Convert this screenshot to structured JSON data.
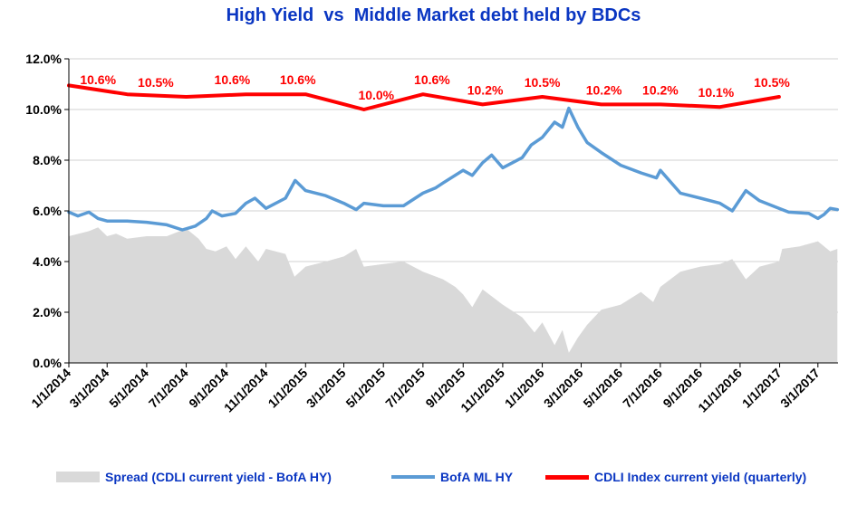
{
  "chart_data": {
    "type": "line",
    "title": "High Yield  vs  Middle Market debt held by BDCs",
    "x_tick_labels": [
      "1/1/2014",
      "3/1/2014",
      "5/1/2014",
      "7/1/2014",
      "9/1/2014",
      "11/1/2014",
      "1/1/2015",
      "3/1/2015",
      "5/1/2015",
      "7/1/2015",
      "9/1/2015",
      "11/1/2015",
      "1/1/2016",
      "3/1/2016",
      "5/1/2016",
      "7/1/2016",
      "9/1/2016",
      "11/1/2016",
      "1/1/2017",
      "3/1/2017"
    ],
    "y_tick_labels": [
      "0.0%",
      "2.0%",
      "4.0%",
      "6.0%",
      "8.0%",
      "10.0%",
      "12.0%"
    ],
    "ylim": [
      0,
      12
    ],
    "grid": true,
    "legend_position": "bottom",
    "series": [
      {
        "name": "Spread (CDLI current yield - BofA HY)",
        "style": "area",
        "color": "#d9d9d9",
        "points": [
          [
            "2014-01-01",
            5.0
          ],
          [
            "2014-02-01",
            5.2
          ],
          [
            "2014-02-15",
            5.35
          ],
          [
            "2014-03-01",
            5.0
          ],
          [
            "2014-03-15",
            5.1
          ],
          [
            "2014-04-01",
            4.9
          ],
          [
            "2014-05-01",
            5.0
          ],
          [
            "2014-06-01",
            5.0
          ],
          [
            "2014-07-01",
            5.3
          ],
          [
            "2014-07-20",
            4.9
          ],
          [
            "2014-08-01",
            4.5
          ],
          [
            "2014-08-15",
            4.4
          ],
          [
            "2014-09-01",
            4.6
          ],
          [
            "2014-09-15",
            4.1
          ],
          [
            "2014-10-01",
            4.6
          ],
          [
            "2014-10-20",
            4.0
          ],
          [
            "2014-11-01",
            4.5
          ],
          [
            "2014-12-01",
            4.3
          ],
          [
            "2014-12-15",
            3.4
          ],
          [
            "2015-01-01",
            3.8
          ],
          [
            "2015-02-01",
            4.0
          ],
          [
            "2015-03-01",
            4.2
          ],
          [
            "2015-03-20",
            4.5
          ],
          [
            "2015-04-01",
            3.8
          ],
          [
            "2015-05-01",
            3.9
          ],
          [
            "2015-06-01",
            4.0
          ],
          [
            "2015-07-01",
            3.6
          ],
          [
            "2015-08-01",
            3.3
          ],
          [
            "2015-08-20",
            3.0
          ],
          [
            "2015-09-01",
            2.7
          ],
          [
            "2015-09-15",
            2.2
          ],
          [
            "2015-10-01",
            2.9
          ],
          [
            "2015-11-01",
            2.3
          ],
          [
            "2015-12-01",
            1.8
          ],
          [
            "2015-12-20",
            1.2
          ],
          [
            "2016-01-01",
            1.6
          ],
          [
            "2016-01-20",
            0.7
          ],
          [
            "2016-02-01",
            1.3
          ],
          [
            "2016-02-11",
            0.4
          ],
          [
            "2016-02-25",
            1.0
          ],
          [
            "2016-03-10",
            1.5
          ],
          [
            "2016-04-01",
            2.1
          ],
          [
            "2016-05-01",
            2.3
          ],
          [
            "2016-06-01",
            2.8
          ],
          [
            "2016-06-20",
            2.4
          ],
          [
            "2016-07-01",
            3.0
          ],
          [
            "2016-08-01",
            3.6
          ],
          [
            "2016-09-01",
            3.8
          ],
          [
            "2016-10-01",
            3.9
          ],
          [
            "2016-10-20",
            4.1
          ],
          [
            "2016-11-10",
            3.3
          ],
          [
            "2016-12-01",
            3.8
          ],
          [
            "2016-12-31",
            4.0
          ],
          [
            "2017-01-05",
            4.5
          ],
          [
            "2017-02-01",
            4.6
          ],
          [
            "2017-03-01",
            4.8
          ],
          [
            "2017-03-20",
            4.4
          ],
          [
            "2017-03-31",
            4.5
          ]
        ]
      },
      {
        "name": "BofA ML HY",
        "style": "line",
        "color": "#5b9bd5",
        "points": [
          [
            "2014-01-01",
            5.95
          ],
          [
            "2014-01-15",
            5.8
          ],
          [
            "2014-02-01",
            5.95
          ],
          [
            "2014-02-15",
            5.7
          ],
          [
            "2014-03-01",
            5.6
          ],
          [
            "2014-04-01",
            5.6
          ],
          [
            "2014-05-01",
            5.55
          ],
          [
            "2014-06-01",
            5.45
          ],
          [
            "2014-06-25",
            5.25
          ],
          [
            "2014-07-15",
            5.4
          ],
          [
            "2014-08-01",
            5.7
          ],
          [
            "2014-08-10",
            6.0
          ],
          [
            "2014-08-25",
            5.8
          ],
          [
            "2014-09-15",
            5.9
          ],
          [
            "2014-10-01",
            6.3
          ],
          [
            "2014-10-15",
            6.5
          ],
          [
            "2014-11-01",
            6.1
          ],
          [
            "2014-12-01",
            6.5
          ],
          [
            "2014-12-16",
            7.2
          ],
          [
            "2015-01-01",
            6.8
          ],
          [
            "2015-02-01",
            6.6
          ],
          [
            "2015-03-01",
            6.3
          ],
          [
            "2015-03-20",
            6.05
          ],
          [
            "2015-04-01",
            6.3
          ],
          [
            "2015-05-01",
            6.2
          ],
          [
            "2015-06-01",
            6.2
          ],
          [
            "2015-07-01",
            6.7
          ],
          [
            "2015-07-20",
            6.9
          ],
          [
            "2015-08-01",
            7.1
          ],
          [
            "2015-09-01",
            7.6
          ],
          [
            "2015-09-15",
            7.4
          ],
          [
            "2015-10-01",
            7.9
          ],
          [
            "2015-10-15",
            8.2
          ],
          [
            "2015-11-01",
            7.7
          ],
          [
            "2015-12-01",
            8.1
          ],
          [
            "2015-12-15",
            8.6
          ],
          [
            "2016-01-01",
            8.9
          ],
          [
            "2016-01-20",
            9.5
          ],
          [
            "2016-02-01",
            9.3
          ],
          [
            "2016-02-11",
            10.05
          ],
          [
            "2016-02-25",
            9.3
          ],
          [
            "2016-03-10",
            8.7
          ],
          [
            "2016-04-01",
            8.3
          ],
          [
            "2016-05-01",
            7.8
          ],
          [
            "2016-06-01",
            7.5
          ],
          [
            "2016-06-25",
            7.3
          ],
          [
            "2016-07-01",
            7.6
          ],
          [
            "2016-08-01",
            6.7
          ],
          [
            "2016-09-01",
            6.5
          ],
          [
            "2016-10-01",
            6.3
          ],
          [
            "2016-10-20",
            6.0
          ],
          [
            "2016-11-10",
            6.8
          ],
          [
            "2016-12-01",
            6.4
          ],
          [
            "2016-12-31",
            6.1
          ],
          [
            "2017-01-15",
            5.95
          ],
          [
            "2017-02-15",
            5.9
          ],
          [
            "2017-03-01",
            5.7
          ],
          [
            "2017-03-10",
            5.85
          ],
          [
            "2017-03-20",
            6.1
          ],
          [
            "2017-03-31",
            6.05
          ]
        ]
      },
      {
        "name": "CDLI Index current yield (quarterly)",
        "style": "line",
        "color": "#ff0000",
        "points": [
          [
            "2014-01-01",
            10.95
          ],
          [
            "2014-04-01",
            10.6
          ],
          [
            "2014-07-01",
            10.5
          ],
          [
            "2014-10-01",
            10.6
          ],
          [
            "2015-01-01",
            10.6
          ],
          [
            "2015-04-01",
            10.0
          ],
          [
            "2015-07-01",
            10.6
          ],
          [
            "2015-10-01",
            10.2
          ],
          [
            "2016-01-01",
            10.5
          ],
          [
            "2016-04-01",
            10.2
          ],
          [
            "2016-07-01",
            10.2
          ],
          [
            "2016-10-01",
            10.1
          ],
          [
            "2016-12-31",
            10.5
          ]
        ]
      }
    ],
    "data_labels": [
      {
        "x": "2014-02-15",
        "y": 10.6,
        "text": "10.6%"
      },
      {
        "x": "2014-05-15",
        "y": 10.5,
        "text": "10.5%"
      },
      {
        "x": "2014-09-10",
        "y": 10.6,
        "text": "10.6%"
      },
      {
        "x": "2014-12-20",
        "y": 10.6,
        "text": "10.6%"
      },
      {
        "x": "2015-04-20",
        "y": 10.0,
        "text": "10.0%"
      },
      {
        "x": "2015-07-15",
        "y": 10.6,
        "text": "10.6%"
      },
      {
        "x": "2015-10-05",
        "y": 10.2,
        "text": "10.2%"
      },
      {
        "x": "2016-01-01",
        "y": 10.5,
        "text": "10.5%"
      },
      {
        "x": "2016-04-05",
        "y": 10.2,
        "text": "10.2%"
      },
      {
        "x": "2016-07-01",
        "y": 10.2,
        "text": "10.2%"
      },
      {
        "x": "2016-09-25",
        "y": 10.1,
        "text": "10.1%"
      },
      {
        "x": "2016-12-20",
        "y": 10.5,
        "text": "10.5%"
      }
    ]
  }
}
